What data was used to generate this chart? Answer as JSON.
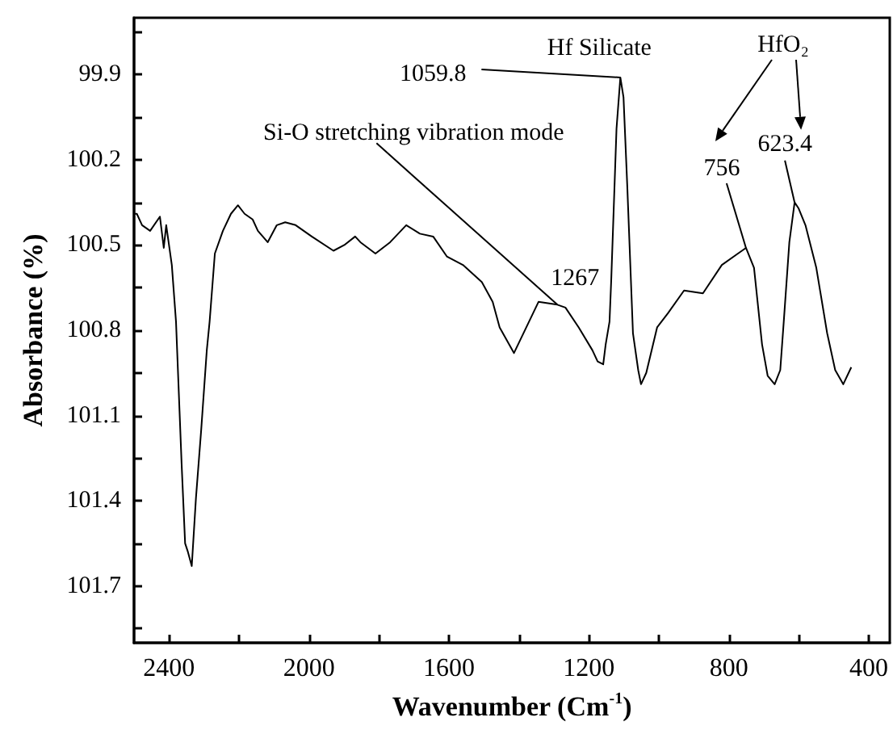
{
  "chart_data": {
    "type": "line",
    "xlabel": "Wavenumber (Cm$^{-1}$)",
    "ylabel": "Absorbance (%)",
    "color": "#000000",
    "marker": "none",
    "line_style": "solid",
    "x": [
      2500,
      2492,
      2477,
      2454,
      2426,
      2415,
      2408,
      2392,
      2380,
      2364,
      2354,
      2346,
      2335,
      2323,
      2308,
      2292,
      2284,
      2269,
      2246,
      2223,
      2203,
      2184,
      2161,
      2146,
      2118,
      2092,
      2068,
      2038,
      1992,
      1930,
      1899,
      1868,
      1853,
      1810,
      1768,
      1722,
      1683,
      1645,
      1606,
      1560,
      1506,
      1475,
      1455,
      1414,
      1344,
      1290,
      1267,
      1229,
      1190,
      1175,
      1159,
      1152,
      1141,
      1136,
      1121,
      1110,
      1101,
      1090,
      1074,
      1059,
      1051,
      1036,
      1005,
      974,
      928,
      874,
      820,
      774,
      751,
      728,
      705,
      689,
      669,
      653,
      643,
      627,
      612,
      601,
      581,
      550,
      519,
      496,
      473,
      450
    ],
    "values": [
      100.39,
      100.39,
      100.43,
      100.45,
      100.4,
      100.51,
      100.43,
      100.57,
      100.77,
      101.27,
      101.55,
      101.58,
      101.63,
      101.39,
      101.15,
      100.87,
      100.77,
      100.53,
      100.45,
      100.39,
      100.36,
      100.39,
      100.41,
      100.45,
      100.49,
      100.43,
      100.42,
      100.43,
      100.47,
      100.52,
      100.5,
      100.47,
      100.49,
      100.53,
      100.49,
      100.43,
      100.46,
      100.47,
      100.54,
      100.57,
      100.63,
      100.7,
      100.79,
      100.88,
      100.7,
      100.71,
      100.72,
      100.79,
      100.87,
      100.91,
      100.92,
      100.85,
      100.77,
      100.62,
      100.09,
      99.91,
      99.98,
      100.3,
      100.81,
      100.94,
      100.99,
      100.95,
      100.79,
      100.74,
      100.66,
      100.67,
      100.57,
      100.53,
      100.51,
      100.58,
      100.85,
      100.96,
      100.99,
      100.94,
      100.77,
      100.49,
      100.35,
      100.37,
      100.43,
      100.58,
      100.81,
      100.94,
      100.99,
      100.93
    ],
    "xlim": [
      2500,
      340
    ],
    "ylim": [
      101.9,
      99.7
    ],
    "xticks": [
      {
        "value": 2400,
        "label": "2400"
      },
      {
        "value": 2200,
        "label": null
      },
      {
        "value": 2000,
        "label": "2000"
      },
      {
        "value": 1800,
        "label": null
      },
      {
        "value": 1600,
        "label": "1600"
      },
      {
        "value": 1400,
        "label": null
      },
      {
        "value": 1200,
        "label": "1200"
      },
      {
        "value": 1000,
        "label": null
      },
      {
        "value": 800,
        "label": "800"
      },
      {
        "value": 600,
        "label": null
      },
      {
        "value": 400,
        "label": "400"
      }
    ],
    "yticks": [
      {
        "value": 99.75,
        "label": null
      },
      99.9,
      {
        "value": 100.05,
        "label": null
      },
      100.2,
      {
        "value": 100.35,
        "label": null
      },
      100.5,
      {
        "value": 100.65,
        "label": null
      },
      100.8,
      {
        "value": 100.95,
        "label": null
      },
      101.1,
      {
        "value": 101.25,
        "label": null
      },
      101.4,
      {
        "value": 101.55,
        "label": null
      },
      101.7,
      {
        "value": 101.85,
        "label": null
      }
    ],
    "annotations": [
      {
        "text": "Si-O stretching vibration mode",
        "x": 1290,
        "y": 100.71
      },
      {
        "text": "1267",
        "x": 1267,
        "y": 100.72
      },
      {
        "text": "1059.8",
        "x": 1110,
        "y": 99.91
      },
      {
        "text": "Hf Silicate",
        "x": 1110,
        "y": 99.91
      },
      "HfO₂",
      {
        "text": "756",
        "x": 751,
        "y": 100.51
      },
      {
        "text": "623.4",
        "x": 612,
        "y": 100.35
      }
    ]
  }
}
